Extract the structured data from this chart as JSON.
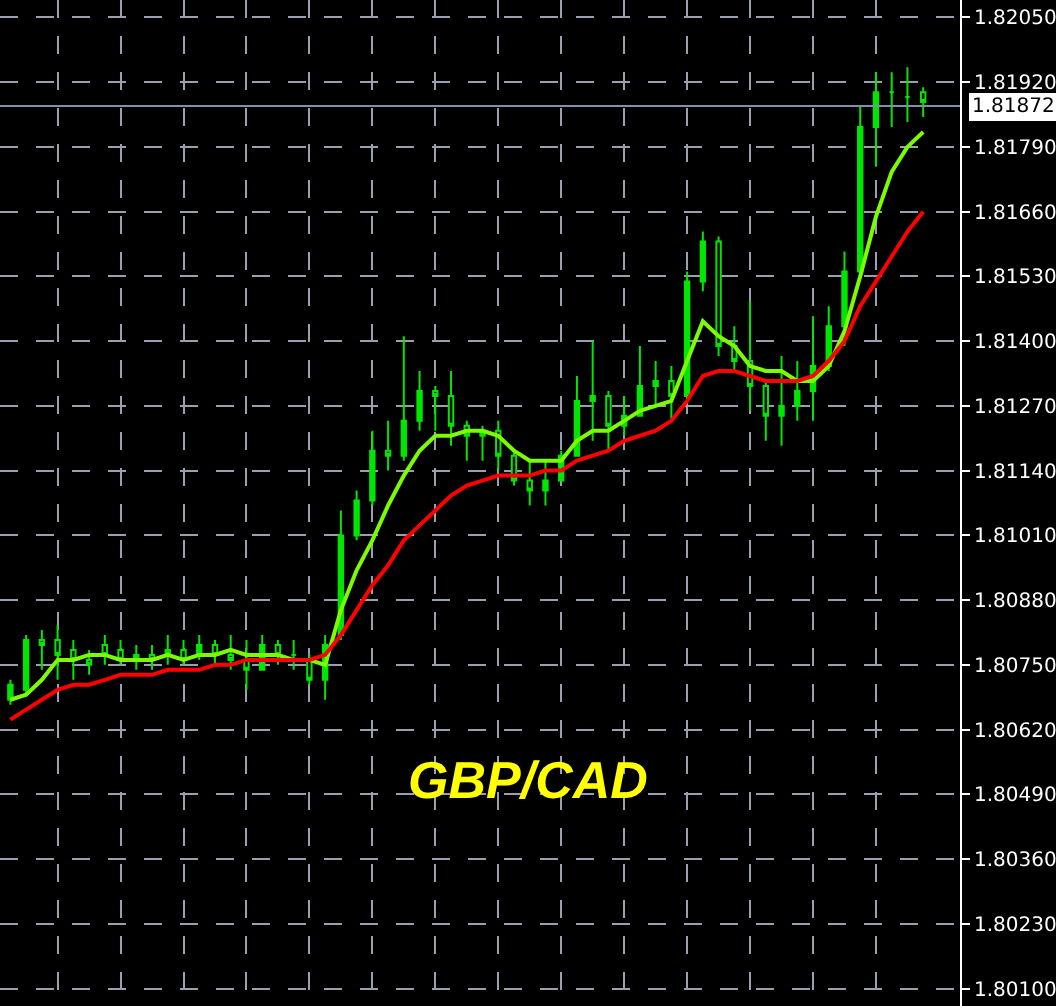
{
  "chart_data": {
    "type": "candlestick",
    "categories": [
      null,
      null,
      null,
      null,
      null,
      null,
      null,
      null,
      null,
      null,
      null,
      null,
      null,
      null,
      null,
      null,
      null,
      null,
      null,
      null,
      null,
      null,
      null,
      null,
      null,
      null,
      null,
      null,
      null,
      null,
      null,
      null,
      null,
      null,
      null,
      null,
      null,
      null,
      null,
      null,
      null,
      null,
      null,
      null,
      null,
      null,
      null,
      null,
      null,
      null,
      null,
      null,
      null,
      null,
      null,
      null,
      null,
      null,
      null
    ],
    "series": [
      {
        "color": "#00e600",
        "ohlc": [
          [
            1.8068,
            1.8072,
            1.8067,
            1.8071
          ],
          [
            1.807,
            1.8081,
            1.8069,
            1.808
          ],
          [
            1.808,
            1.8082,
            1.8074,
            1.8079
          ],
          [
            1.808,
            1.8083,
            1.8072,
            1.8077
          ],
          [
            1.8078,
            1.808,
            1.8072,
            1.8076
          ],
          [
            1.8076,
            1.8078,
            1.8073,
            1.8075
          ],
          [
            1.8079,
            1.8081,
            1.8075,
            1.8077
          ],
          [
            1.8078,
            1.808,
            1.8075,
            1.8076
          ],
          [
            1.8076,
            1.8079,
            1.8074,
            1.8077
          ],
          [
            1.8077,
            1.8079,
            1.8074,
            1.8076
          ],
          [
            1.8077,
            1.8081,
            1.8075,
            1.8078
          ],
          [
            1.8078,
            1.808,
            1.8075,
            1.8076
          ],
          [
            1.8077,
            1.8081,
            1.8076,
            1.8079
          ],
          [
            1.8079,
            1.808,
            1.8075,
            1.8077
          ],
          [
            1.8077,
            1.8081,
            1.8074,
            1.8076
          ],
          [
            1.8076,
            1.808,
            1.807,
            1.8074
          ],
          [
            1.8074,
            1.8081,
            1.8074,
            1.8079
          ],
          [
            1.8079,
            1.808,
            1.8075,
            1.8077
          ],
          [
            1.8077,
            1.808,
            1.8074,
            1.8077
          ],
          [
            1.8076,
            1.8077,
            1.8071,
            1.8072
          ],
          [
            1.8072,
            1.8081,
            1.8068,
            1.8079
          ],
          [
            1.8081,
            1.8106,
            1.808,
            1.8101
          ],
          [
            1.8101,
            1.811,
            1.81,
            1.8108
          ],
          [
            1.8108,
            1.8122,
            1.8107,
            1.8118
          ],
          [
            1.8118,
            1.8124,
            1.8114,
            1.8117
          ],
          [
            1.8117,
            1.8141,
            1.8116,
            1.8124
          ],
          [
            1.8124,
            1.8134,
            1.8122,
            1.813
          ],
          [
            1.813,
            1.8131,
            1.8122,
            1.8129
          ],
          [
            1.8129,
            1.8134,
            1.8119,
            1.8123
          ],
          [
            1.8123,
            1.8124,
            1.8116,
            1.8121
          ],
          [
            1.8121,
            1.8123,
            1.8116,
            1.8122
          ],
          [
            1.8122,
            1.8124,
            1.8114,
            1.8117
          ],
          [
            1.8117,
            1.8118,
            1.8111,
            1.8112
          ],
          [
            1.8112,
            1.8116,
            1.8107,
            1.811
          ],
          [
            1.811,
            1.8116,
            1.8107,
            1.8112
          ],
          [
            1.8112,
            1.8118,
            1.8112,
            1.8117
          ],
          [
            1.8117,
            1.8133,
            1.8117,
            1.8128
          ],
          [
            1.8128,
            1.814,
            1.812,
            1.8129
          ],
          [
            1.8129,
            1.813,
            1.8118,
            1.8123
          ],
          [
            1.8123,
            1.8129,
            1.8121,
            1.8125
          ],
          [
            1.8125,
            1.8139,
            1.8125,
            1.8131
          ],
          [
            1.8131,
            1.8136,
            1.8127,
            1.8132
          ],
          [
            1.8132,
            1.8135,
            1.8124,
            1.8129
          ],
          [
            1.8129,
            1.8154,
            1.8129,
            1.8152
          ],
          [
            1.8152,
            1.8162,
            1.815,
            1.816
          ],
          [
            1.816,
            1.8161,
            1.8137,
            1.8139
          ],
          [
            1.8139,
            1.8143,
            1.8134,
            1.8136
          ],
          [
            1.8136,
            1.8148,
            1.8126,
            1.8131
          ],
          [
            1.8131,
            1.8132,
            1.812,
            1.8125
          ],
          [
            1.8125,
            1.8137,
            1.8119,
            1.8127
          ],
          [
            1.8127,
            1.8136,
            1.8124,
            1.813
          ],
          [
            1.813,
            1.8145,
            1.8124,
            1.8135
          ],
          [
            1.8135,
            1.8147,
            1.8134,
            1.8143
          ],
          [
            1.8143,
            1.8158,
            1.8139,
            1.8154
          ],
          [
            1.8154,
            1.8187,
            1.8154,
            1.8183
          ],
          [
            1.8183,
            1.8194,
            1.8175,
            1.819
          ],
          [
            1.819,
            1.8194,
            1.8183,
            1.819
          ],
          [
            1.8189,
            1.8195,
            1.8184,
            1.8189
          ],
          [
            1.819,
            1.8191,
            1.8185,
            1.8188
          ]
        ]
      },
      {
        "type": "line",
        "color": "#7cfc00",
        "values": [
          1.8068,
          1.8069,
          1.8072,
          1.8076,
          1.8076,
          1.8077,
          1.8077,
          1.8076,
          1.8076,
          1.8076,
          1.8077,
          1.8076,
          1.8077,
          1.8077,
          1.8078,
          1.8077,
          1.8077,
          1.8077,
          1.8076,
          1.8076,
          1.8075,
          1.8086,
          1.8094,
          1.81,
          1.8107,
          1.8113,
          1.8118,
          1.8121,
          1.8121,
          1.8122,
          1.8122,
          1.8121,
          1.8118,
          1.8116,
          1.8116,
          1.8116,
          1.812,
          1.8122,
          1.8122,
          1.8124,
          1.8126,
          1.8127,
          1.8128,
          1.8136,
          1.8144,
          1.8141,
          1.8139,
          1.8135,
          1.8134,
          1.8134,
          1.8132,
          1.8132,
          1.8135,
          1.8142,
          1.8153,
          1.8165,
          1.8174,
          1.8179,
          1.8182
        ]
      },
      {
        "type": "line",
        "color": "#ff0000",
        "values": [
          1.8064,
          1.8066,
          1.8068,
          1.807,
          1.8071,
          1.8071,
          1.8072,
          1.8073,
          1.8073,
          1.8073,
          1.8074,
          1.8074,
          1.8074,
          1.8075,
          1.8075,
          1.8076,
          1.8076,
          1.8076,
          1.8076,
          1.8076,
          1.8077,
          1.8081,
          1.8086,
          1.8091,
          1.8095,
          1.81,
          1.8103,
          1.8106,
          1.8109,
          1.8111,
          1.8112,
          1.8113,
          1.8113,
          1.8113,
          1.8114,
          1.8114,
          1.8116,
          1.8117,
          1.8118,
          1.812,
          1.8121,
          1.8122,
          1.8124,
          1.8128,
          1.8133,
          1.8134,
          1.8134,
          1.8133,
          1.8132,
          1.8132,
          1.8132,
          1.8133,
          1.8136,
          1.814,
          1.8147,
          1.8152,
          1.8157,
          1.8162,
          1.8166
        ]
      }
    ],
    "ylim": [
      1.80065,
      1.82085
    ],
    "yticks": [
      {
        "value": 1.801,
        "label": "1.80100"
      },
      {
        "value": 1.8023,
        "label": "1.80230"
      },
      {
        "value": 1.8036,
        "label": "1.80360"
      },
      {
        "value": 1.8049,
        "label": "1.80490"
      },
      {
        "value": 1.8062,
        "label": "1.80620"
      },
      {
        "value": 1.8075,
        "label": "1.80750"
      },
      {
        "value": 1.8088,
        "label": "1.80880"
      },
      {
        "value": 1.8101,
        "label": "1.81010"
      },
      {
        "value": 1.8114,
        "label": "1.81140"
      },
      {
        "value": 1.8127,
        "label": "1.81270"
      },
      {
        "value": 1.814,
        "label": "1.81400"
      },
      {
        "value": 1.8153,
        "label": "1.81530"
      },
      {
        "value": 1.8166,
        "label": "1.81660"
      },
      {
        "value": 1.8179,
        "label": "1.81790"
      },
      {
        "value": 1.8192,
        "label": "1.81920"
      },
      {
        "value": 1.8205,
        "label": "1.82050"
      }
    ],
    "ref_lines": [
      {
        "axis": "y",
        "value": 1.81872,
        "label": "1.81872",
        "color": "#8090a8"
      }
    ],
    "annotations": [
      "GBP/CAD"
    ],
    "grid": true,
    "tick_labels": "y",
    "line_style": "solid",
    "marker": "none"
  }
}
